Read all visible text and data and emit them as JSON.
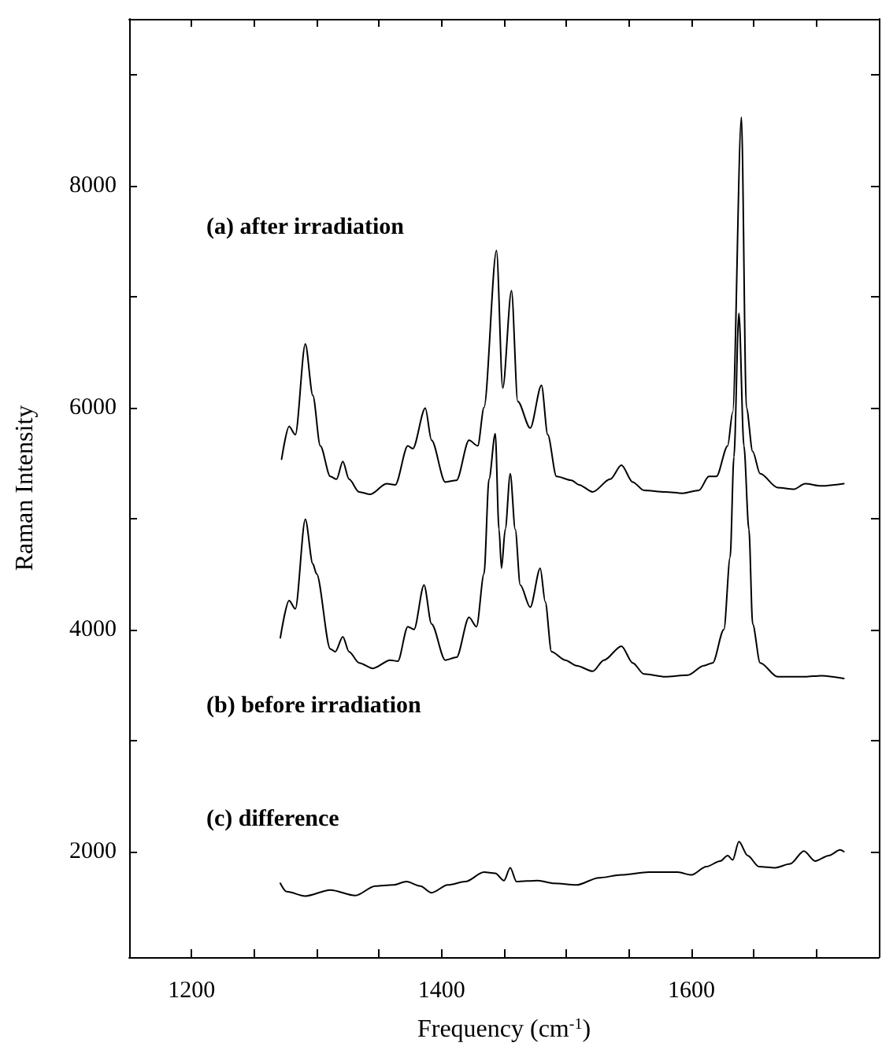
{
  "chart_data": {
    "type": "line",
    "xlabel": "Frequency (cm$^{-1}$)",
    "ylabel": "Raman Intensity",
    "xlim": [
      1150,
      1750
    ],
    "ylim": [
      1050,
      9500
    ],
    "xticks": [
      {
        "value": 1150,
        "label": null
      },
      1200,
      {
        "value": 1250,
        "label": null
      },
      {
        "value": 1300,
        "label": null
      },
      {
        "value": 1350,
        "label": null
      },
      1400,
      {
        "value": 1450,
        "label": null
      },
      {
        "value": 1500,
        "label": null
      },
      {
        "value": 1550,
        "label": null
      },
      1600,
      {
        "value": 1650,
        "label": null
      },
      {
        "value": 1700,
        "label": null
      }
    ],
    "yticks": [
      2000,
      {
        "value": 3000,
        "label": null
      },
      4000,
      {
        "value": 5000,
        "label": null
      },
      6000,
      {
        "value": 7000,
        "label": null
      },
      8000,
      {
        "value": 9000,
        "label": null
      }
    ],
    "annotations": [
      "(a) after irradiation",
      "(b) before irradiation",
      "(c) difference"
    ],
    "grid": false,
    "marker": "none",
    "line_style": "solid",
    "series": [
      {
        "color": "#000000",
        "x": [
          1272,
          1278,
          1283,
          1291,
          1297,
          1303,
          1311,
          1316,
          1321,
          1326,
          1334,
          1343,
          1356,
          1363,
          1373,
          1377,
          1387,
          1392,
          1403,
          1412,
          1422,
          1429,
          1434,
          1444,
          1449,
          1456,
          1461,
          1471,
          1480,
          1485,
          1492,
          1504,
          1510,
          1521,
          1535,
          1544,
          1553,
          1562,
          1579,
          1593,
          1606,
          1614,
          1620,
          1629,
          1633,
          1640,
          1644,
          1649,
          1655,
          1669,
          1682,
          1691,
          1704,
          1722
        ],
        "values": [
          5534,
          5830,
          5755,
          6572,
          6110,
          5655,
          5379,
          5354,
          5514,
          5354,
          5240,
          5218,
          5314,
          5304,
          5654,
          5630,
          5995,
          5705,
          5329,
          5344,
          5705,
          5655,
          6000,
          7414,
          6176,
          7053,
          6055,
          5815,
          6200,
          5755,
          5379,
          5344,
          5304,
          5240,
          5354,
          5480,
          5329,
          5254,
          5240,
          5228,
          5254,
          5379,
          5379,
          5655,
          5955,
          8616,
          6000,
          5604,
          5404,
          5279,
          5264,
          5314,
          5294,
          5314
        ]
      },
      {
        "color": "#000000",
        "x": [
          1271,
          1278,
          1283,
          1291,
          1297,
          1300,
          1311,
          1315,
          1321,
          1326,
          1334,
          1345,
          1359,
          1365,
          1373,
          1378,
          1386,
          1392,
          1403,
          1412,
          1422,
          1428,
          1434,
          1438,
          1443,
          1446,
          1448,
          1451,
          1455,
          1459,
          1463,
          1471,
          1479,
          1483,
          1488,
          1499,
          1508,
          1521,
          1530,
          1544,
          1553,
          1562,
          1579,
          1597,
          1610,
          1617,
          1626,
          1631,
          1634,
          1638,
          1642,
          1646,
          1649,
          1655,
          1669,
          1691,
          1704,
          1722
        ],
        "values": [
          3926,
          4262,
          4186,
          4993,
          4592,
          4502,
          3826,
          3801,
          3936,
          3801,
          3700,
          3650,
          3725,
          3715,
          4026,
          4001,
          4402,
          4051,
          3725,
          3750,
          4111,
          4026,
          4502,
          5354,
          5765,
          4903,
          4552,
          4903,
          5405,
          4903,
          4402,
          4201,
          4552,
          4251,
          3801,
          3725,
          3675,
          3625,
          3725,
          3851,
          3700,
          3600,
          3575,
          3590,
          3675,
          3700,
          4001,
          4652,
          5554,
          6848,
          5655,
          4903,
          4051,
          3700,
          3575,
          3575,
          3585,
          3560
        ]
      },
      {
        "color": "#000000",
        "x": [
          1271,
          1276,
          1291,
          1311,
          1331,
          1347,
          1361,
          1372,
          1383,
          1392,
          1405,
          1419,
          1434,
          1443,
          1450,
          1455,
          1460,
          1477,
          1490,
          1508,
          1526,
          1544,
          1566,
          1589,
          1600,
          1612,
          1623,
          1629,
          1633,
          1638,
          1645,
          1654,
          1667,
          1679,
          1690,
          1699,
          1710,
          1719,
          1722
        ],
        "values": [
          1715,
          1640,
          1600,
          1655,
          1605,
          1690,
          1700,
          1730,
          1690,
          1630,
          1700,
          1730,
          1815,
          1805,
          1740,
          1855,
          1730,
          1740,
          1715,
          1700,
          1765,
          1790,
          1815,
          1815,
          1790,
          1865,
          1915,
          1965,
          1925,
          2090,
          1965,
          1865,
          1855,
          1890,
          2005,
          1915,
          1965,
          2015,
          2000
        ]
      }
    ]
  }
}
